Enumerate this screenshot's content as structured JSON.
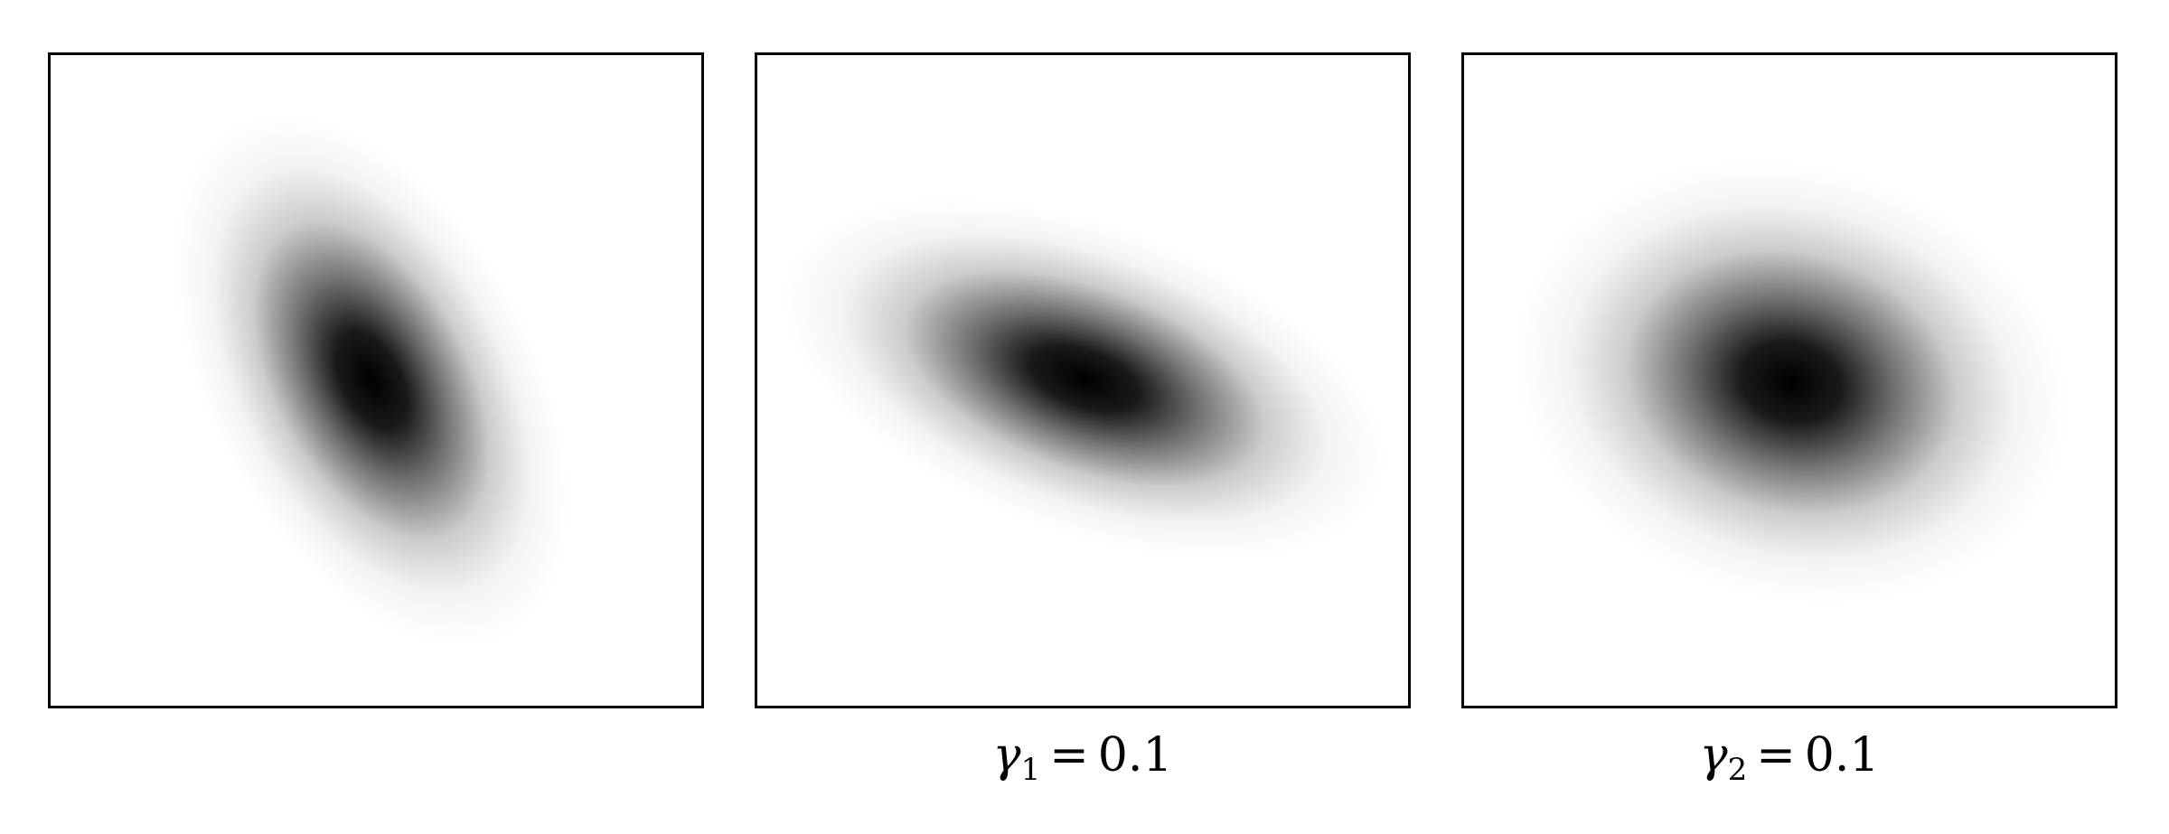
{
  "panels": [
    {
      "name": "original",
      "caption": null,
      "blob": {
        "orientation_deg": 62,
        "elongation": "high"
      }
    },
    {
      "name": "shear-gamma1",
      "caption": {
        "symbol": "γ",
        "subscript": "1",
        "operator": "=",
        "value": "0.1"
      },
      "blob": {
        "orientation_deg": 20,
        "elongation": "high"
      }
    },
    {
      "name": "shear-gamma2",
      "caption": {
        "symbol": "γ",
        "subscript": "2",
        "operator": "=",
        "value": "0.1"
      },
      "blob": {
        "orientation_deg": 15,
        "elongation": "low"
      }
    }
  ],
  "colors": {
    "background": "#ffffff",
    "blob": "#000000",
    "frame": "#000000"
  }
}
